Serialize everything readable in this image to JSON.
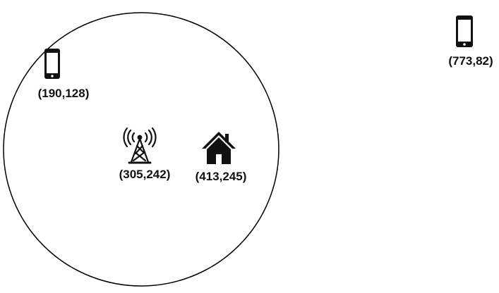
{
  "diagram": {
    "coverage_area": {
      "shape": "circle",
      "stroke_color": "#000000",
      "fill_color": "#ffffff"
    },
    "nodes": [
      {
        "id": "base-station",
        "icon": "cell-tower-icon",
        "label": "(305,242)"
      },
      {
        "id": "home",
        "icon": "house-icon",
        "label": "(413,245)"
      },
      {
        "id": "phone-inside",
        "icon": "smartphone-icon",
        "label": "(190,128)"
      },
      {
        "id": "phone-outside",
        "icon": "smartphone-icon",
        "label": "(773,82)"
      }
    ]
  }
}
